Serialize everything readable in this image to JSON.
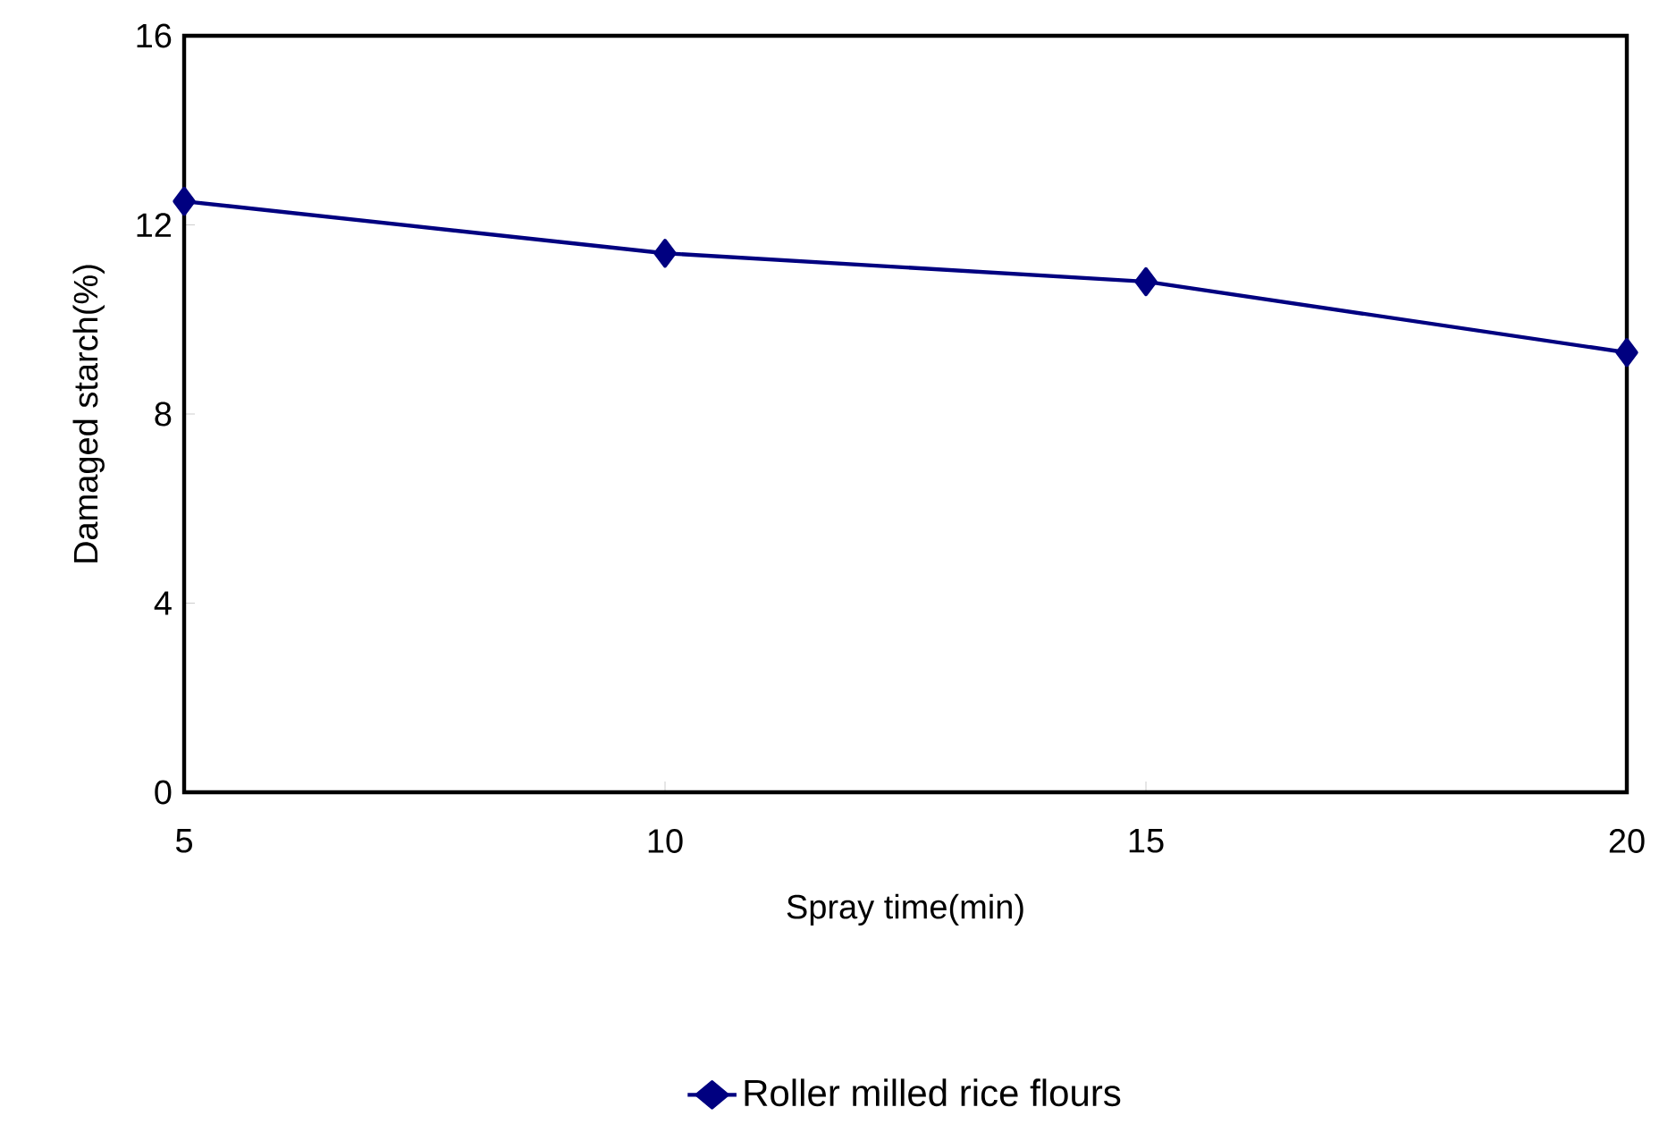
{
  "chart_data": {
    "type": "line",
    "xlabel": "Spray time(min)",
    "ylabel": "Damaged starch(%)",
    "x": [
      5,
      10,
      15,
      20
    ],
    "series": [
      {
        "name": "Roller milled rice flours",
        "color": "#000080",
        "values": [
          12.5,
          11.4,
          10.8,
          9.3
        ]
      }
    ],
    "xlim": [
      5,
      20
    ],
    "xticks": [
      5,
      10,
      15,
      20
    ],
    "ylim": [
      0,
      16
    ],
    "yticks": [
      0,
      4,
      8,
      12,
      16
    ],
    "grid": false,
    "legend": "bottom",
    "marker": "diamond",
    "line_style": "solid"
  }
}
